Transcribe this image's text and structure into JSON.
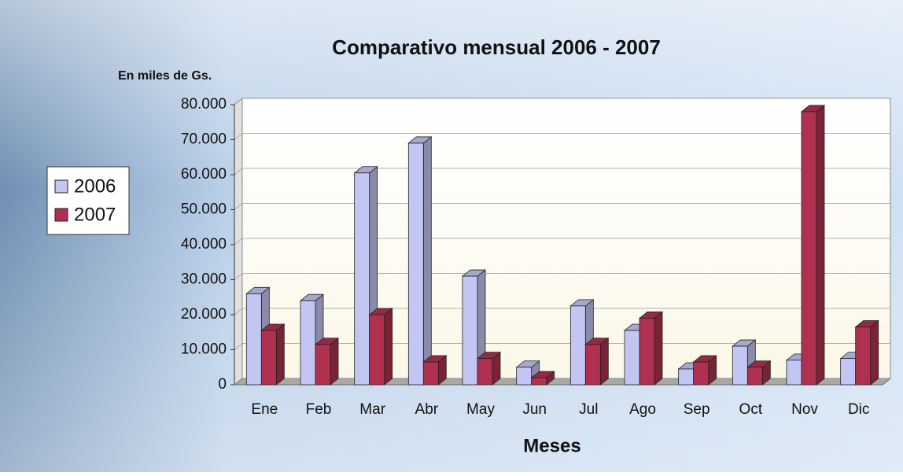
{
  "chart_data": {
    "type": "bar3d",
    "title": "Comparativo mensual 2006 - 2007",
    "subtitle": "En miles de Gs.",
    "x_label": "Meses",
    "categories": [
      "Ene",
      "Feb",
      "Mar",
      "Abr",
      "May",
      "Jun",
      "Jul",
      "Ago",
      "Sep",
      "Oct",
      "Nov",
      "Dic"
    ],
    "series": [
      {
        "name": "2006",
        "color": "#c3c6f2",
        "values": [
          26000,
          24000,
          60500,
          69000,
          31000,
          5000,
          22500,
          15500,
          4500,
          11000,
          7000,
          7500
        ]
      },
      {
        "name": "2007",
        "color": "#b0304f",
        "values": [
          15500,
          11500,
          20000,
          6500,
          7500,
          2000,
          11500,
          19000,
          6500,
          5000,
          78000,
          16500
        ]
      }
    ],
    "ylim": [
      0,
      80000
    ],
    "yticks": [
      0,
      {
        "value": 10000,
        "label": "10.000"
      },
      {
        "value": 20000,
        "label": "20.000"
      },
      {
        "value": 30000,
        "label": "30.000"
      },
      {
        "value": 40000,
        "label": "40.000"
      },
      {
        "value": 50000,
        "label": "50.000"
      },
      {
        "value": 60000,
        "label": "60.000"
      },
      {
        "value": 70000,
        "label": "70.000"
      },
      {
        "value": 80000,
        "label": "80.000"
      }
    ],
    "grid": true,
    "legend": "left"
  }
}
